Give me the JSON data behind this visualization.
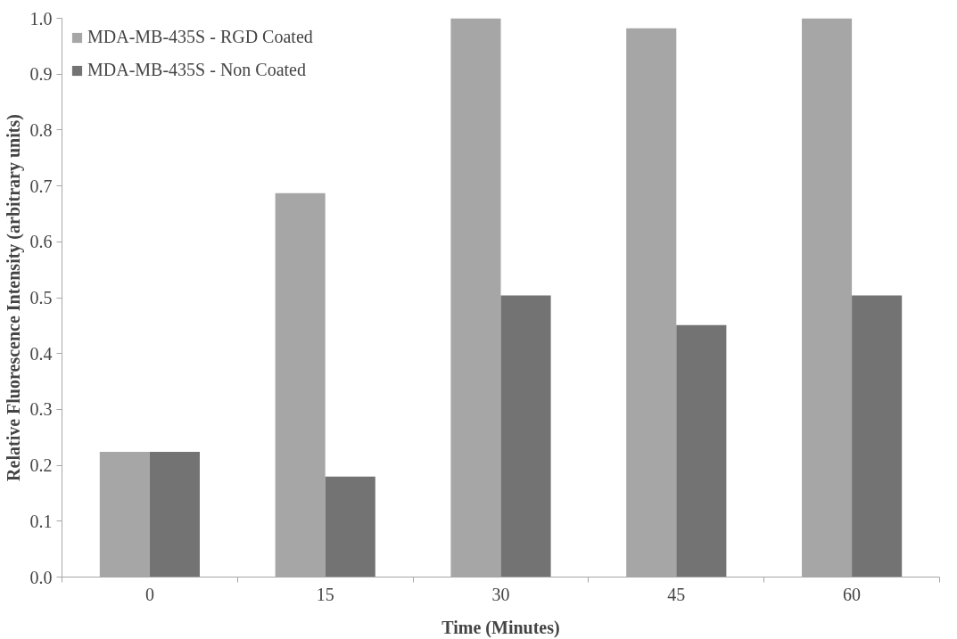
{
  "chart_data": {
    "type": "bar",
    "xlabel": "Time (Minutes)",
    "ylabel": "Relative Fluorescence Intensity (arbitrary units)",
    "categories": [
      "0",
      "15",
      "30",
      "45",
      "60"
    ],
    "series": [
      {
        "name": "MDA-MB-435S - RGD Coated",
        "color": "#a6a6a6",
        "values": [
          0.224,
          0.687,
          1.0,
          0.982,
          1.0
        ]
      },
      {
        "name": "MDA-MB-435S - Non Coated",
        "color": "#737373",
        "values": [
          0.224,
          0.18,
          0.504,
          0.451,
          0.504
        ]
      }
    ],
    "ylim": [
      0,
      1
    ],
    "yticks": [
      {
        "value": 0,
        "label": "0.0"
      },
      0.1,
      0.2,
      0.3,
      0.4,
      0.5,
      0.6,
      0.7,
      0.8,
      0.9,
      {
        "value": 1,
        "label": "1.0"
      }
    ],
    "grid": false,
    "legend": "top left"
  }
}
